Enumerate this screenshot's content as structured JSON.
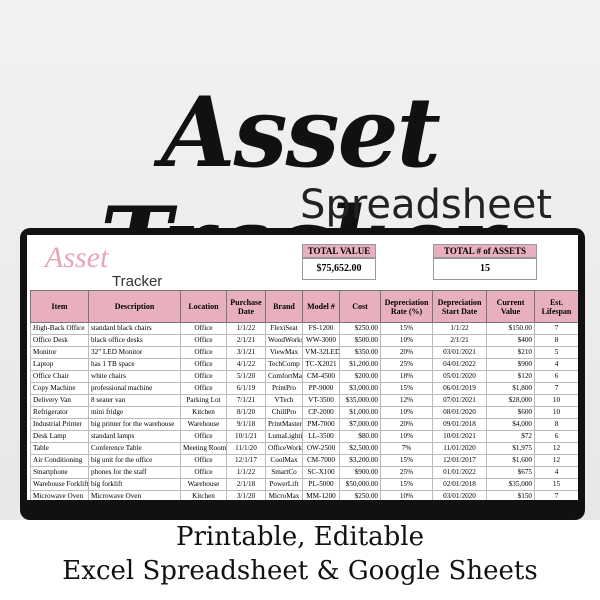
{
  "header": {
    "title": "Asset Tracker",
    "subtitle": "Spreadsheet"
  },
  "sheet": {
    "logo_top": "Asset",
    "logo_bottom": "Tracker",
    "total_value": {
      "label": "TOTAL VALUE",
      "value": "$75,652.00"
    },
    "total_assets": {
      "label": "TOTAL # of ASSETS",
      "value": "15"
    },
    "table": {
      "columns": [
        "Item",
        "Description",
        "Location",
        "Purchase Date",
        "Brand",
        "Model #",
        "Cost",
        "Depreciation Rate (%)",
        "Depreciation Start Date",
        "Current Value",
        "Est. Lifespan"
      ],
      "rows": [
        [
          "High-Back Office",
          "standard black chairs",
          "Office",
          "1/1/22",
          "FlexiSeat",
          "FS-1200",
          "$250.00",
          "15%",
          "1/1/22",
          "$150.00",
          "7"
        ],
        [
          "Office Desk",
          "black office desks",
          "Office",
          "2/1/21",
          "WoodWorks",
          "WW-3000",
          "$500.00",
          "10%",
          "2/1/21",
          "$400",
          "8"
        ],
        [
          "Monitor",
          "32\" LED Monitor",
          "Office",
          "3/1/21",
          "ViewMax",
          "VM-32LED",
          "$350.00",
          "20%",
          "03/01/2021",
          "$210",
          "5"
        ],
        [
          "Laptop",
          "has 1 TB space",
          "Office",
          "4/1/22",
          "TechComp",
          "TC-X2021",
          "$1,200.00",
          "25%",
          "04/01/2022",
          "$900",
          "4"
        ],
        [
          "Office Chair",
          "white chairs",
          "Office",
          "5/1/20",
          "ComfortMax",
          "CM-4500",
          "$200.00",
          "18%",
          "05/01/2020",
          "$120",
          "6"
        ],
        [
          "Copy Machine",
          "professional machine",
          "Office",
          "6/1/19",
          "PrintPro",
          "PP-9000",
          "$3,000.00",
          "15%",
          "06/01/2019",
          "$1,800",
          "7"
        ],
        [
          "Delivery Van",
          "8 seater van",
          "Parking Lot",
          "7/1/21",
          "VTech",
          "VT-3500",
          "$35,000.00",
          "12%",
          "07/01/2021",
          "$28,000",
          "10"
        ],
        [
          "Refrigerator",
          "mini fridge",
          "Kitchen",
          "8/1/20",
          "ChillPro",
          "CP-2000",
          "$1,000.00",
          "10%",
          "08/01/2020",
          "$600",
          "10"
        ],
        [
          "Industrial Printer",
          "big printer for the warehouse",
          "Warehouse",
          "9/1/18",
          "PrintMaster",
          "PM-7000",
          "$7,000.00",
          "20%",
          "09/01/2018",
          "$4,000",
          "8"
        ],
        [
          "Desk Lamp",
          "standard lamps",
          "Office",
          "10/1/21",
          "LumaLighting",
          "LL-3500",
          "$80.00",
          "10%",
          "10/01/2021",
          "$72",
          "6"
        ],
        [
          "Table",
          "Conference Table",
          "Meeting Room",
          "11/1/20",
          "OfficeWorks",
          "OW-2500",
          "$2,500.00",
          "7%",
          "11/01/2020",
          "$1,975",
          "12"
        ],
        [
          "Air Conditioning",
          "big unit for the office",
          "Office",
          "12/1/17",
          "CoolMax",
          "CM-7000",
          "$3,200.00",
          "15%",
          "12/01/2017",
          "$1,600",
          "12"
        ],
        [
          "Smartphone",
          "phones for the staff",
          "Office",
          "1/1/22",
          "SmartCo",
          "SC-X100",
          "$900.00",
          "25%",
          "01/01/2022",
          "$675",
          "4"
        ],
        [
          "Warehouse Forklift",
          "big forklift",
          "Warehouse",
          "2/1/18",
          "PowerLift",
          "PL-5000",
          "$50,000.00",
          "15%",
          "02/01/2018",
          "$35,000",
          "15"
        ],
        [
          "Microwave Oven",
          "Microwave Oven",
          "Kitchen",
          "3/1/20",
          "MicroMax",
          "MM-1200",
          "$250.00",
          "10%",
          "03/01/2020",
          "$150",
          "7"
        ]
      ]
    }
  },
  "footer": {
    "line1": "Printable, Editable",
    "line2": "Excel Spreadsheet & Google Sheets"
  }
}
